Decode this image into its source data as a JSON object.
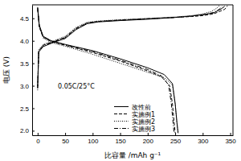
{
  "chart_data": {
    "type": "line",
    "x_label": "比容量 /mAh g⁻¹",
    "y_label": "电压 (V)",
    "annotation": "0.05C/25°C",
    "xlim": [
      -10,
      355
    ],
    "xticks": [
      0,
      50,
      100,
      150,
      200,
      250,
      300,
      350
    ],
    "ylim": [
      1.9,
      4.8
    ],
    "yticks": [
      {
        "value": 2,
        "label": "2.0"
      },
      2.5,
      {
        "value": 3,
        "label": "3.0"
      },
      3.5,
      {
        "value": 4,
        "label": "4.0"
      },
      4.5
    ],
    "legend": "lower center",
    "grid": false,
    "series": [
      {
        "name": "改性前",
        "color": "#000000",
        "line_style": "solid",
        "x": [
          0,
          2,
          10,
          30,
          50,
          70,
          90,
          110,
          150,
          200,
          250,
          280,
          300,
          320,
          335,
          340,
          0,
          0,
          3,
          10,
          25,
          50,
          100,
          150,
          200,
          230,
          245,
          250,
          253,
          255
        ],
        "values": [
          3.0,
          3.75,
          3.87,
          3.97,
          4.05,
          4.25,
          4.38,
          4.42,
          4.45,
          4.48,
          4.52,
          4.55,
          4.58,
          4.62,
          4.72,
          4.77,
          null,
          4.75,
          4.35,
          4.1,
          4.0,
          3.92,
          3.78,
          3.6,
          3.4,
          3.25,
          3.05,
          2.6,
          2.2,
          1.95
        ]
      },
      {
        "name": "实施例1",
        "color": "#000000",
        "line_style": "dashed",
        "x": [
          0,
          2,
          10,
          30,
          50,
          70,
          90,
          110,
          150,
          200,
          250,
          280,
          300,
          320,
          340,
          345,
          0,
          0,
          3,
          10,
          25,
          50,
          100,
          150,
          200,
          225,
          240,
          245,
          248,
          250
        ],
        "values": [
          2.95,
          3.78,
          3.9,
          3.99,
          4.08,
          4.28,
          4.4,
          4.43,
          4.46,
          4.49,
          4.52,
          4.54,
          4.56,
          4.6,
          4.7,
          4.78,
          null,
          4.7,
          4.3,
          4.08,
          3.98,
          3.9,
          3.74,
          3.55,
          3.33,
          3.2,
          3.0,
          2.6,
          2.2,
          1.95
        ]
      },
      {
        "name": "实施例2",
        "color": "#000000",
        "line_style": "dotted",
        "x": [
          0,
          2,
          10,
          30,
          50,
          70,
          90,
          110,
          150,
          200,
          250,
          280,
          300,
          315,
          325,
          330,
          0,
          0,
          3,
          10,
          25,
          50,
          100,
          150,
          200,
          230,
          245,
          250,
          253,
          256
        ],
        "values": [
          2.9,
          3.8,
          3.92,
          4.0,
          4.1,
          4.3,
          4.41,
          4.44,
          4.47,
          4.5,
          4.53,
          4.56,
          4.6,
          4.65,
          4.72,
          4.78,
          null,
          4.72,
          4.32,
          4.06,
          3.96,
          3.88,
          3.7,
          3.5,
          3.3,
          3.18,
          3.02,
          2.6,
          2.2,
          1.95
        ]
      },
      {
        "name": "实施例3",
        "color": "#000000",
        "line_style": "dashdot",
        "x": [
          0,
          2,
          10,
          30,
          50,
          70,
          90,
          110,
          150,
          200,
          250,
          280,
          300,
          320,
          330,
          335,
          0,
          0,
          3,
          10,
          25,
          50,
          100,
          150,
          200,
          225,
          238,
          243,
          246,
          248
        ],
        "values": [
          2.95,
          3.77,
          3.89,
          3.98,
          4.07,
          4.27,
          4.39,
          4.43,
          4.46,
          4.49,
          4.52,
          4.55,
          4.58,
          4.63,
          4.7,
          4.76,
          null,
          4.73,
          4.33,
          4.09,
          3.99,
          3.91,
          3.76,
          3.57,
          3.36,
          3.22,
          3.02,
          2.6,
          2.2,
          1.95
        ]
      }
    ]
  }
}
